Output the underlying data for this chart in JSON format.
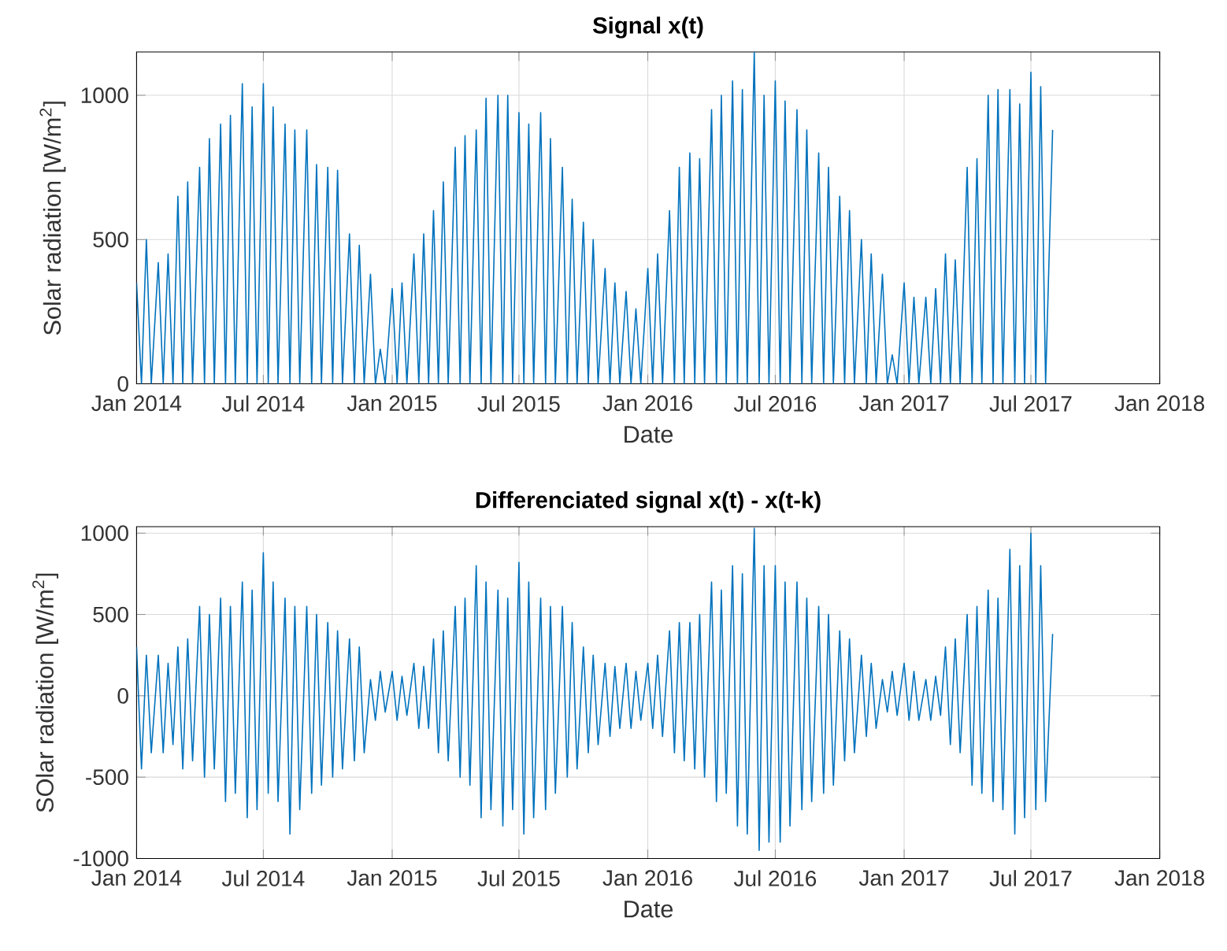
{
  "chart_data": [
    {
      "type": "line",
      "title": "Signal x(t)",
      "xlabel": "Date",
      "ylabel": "Solar radiation [W/m$^{2}$]",
      "grid": true,
      "xlim": [
        "2014-01-01",
        "2018-01-01"
      ],
      "ylim": [
        0,
        1150
      ],
      "xticks": [
        {
          "value": "2014-01-01",
          "label": "Jan 2014"
        },
        {
          "value": "2014-07-01",
          "label": "Jul 2014"
        },
        {
          "value": "2015-01-01",
          "label": "Jan 2015"
        },
        {
          "value": "2015-07-01",
          "label": "Jul 2015"
        },
        {
          "value": "2016-01-01",
          "label": "Jan 2016"
        },
        {
          "value": "2016-07-01",
          "label": "Jul 2016"
        },
        {
          "value": "2017-01-01",
          "label": "Jan 2017"
        },
        {
          "value": "2017-07-01",
          "label": "Jul 2017"
        },
        {
          "value": "2018-01-01",
          "label": "Jan 2018"
        }
      ],
      "yticks": [
        0,
        500,
        1000
      ],
      "x": [
        "2014-01-01",
        "2014-01-08",
        "2014-01-15",
        "2014-01-22",
        "2014-02-01",
        "2014-02-08",
        "2014-02-15",
        "2014-02-22",
        "2014-03-01",
        "2014-03-08",
        "2014-03-15",
        "2014-03-22",
        "2014-04-01",
        "2014-04-08",
        "2014-04-15",
        "2014-04-22",
        "2014-05-01",
        "2014-05-08",
        "2014-05-15",
        "2014-05-22",
        "2014-06-01",
        "2014-06-08",
        "2014-06-15",
        "2014-06-22",
        "2014-07-01",
        "2014-07-08",
        "2014-07-15",
        "2014-07-22",
        "2014-08-01",
        "2014-08-08",
        "2014-08-15",
        "2014-08-22",
        "2014-09-01",
        "2014-09-08",
        "2014-09-15",
        "2014-09-22",
        "2014-10-01",
        "2014-10-08",
        "2014-10-15",
        "2014-10-22",
        "2014-11-01",
        "2014-11-08",
        "2014-11-15",
        "2014-11-22",
        "2014-12-01",
        "2014-12-08",
        "2014-12-15",
        "2014-12-22",
        "2015-01-01",
        "2015-01-08",
        "2015-01-15",
        "2015-01-22",
        "2015-02-01",
        "2015-02-08",
        "2015-02-15",
        "2015-02-22",
        "2015-03-01",
        "2015-03-08",
        "2015-03-15",
        "2015-03-22",
        "2015-04-01",
        "2015-04-08",
        "2015-04-15",
        "2015-04-22",
        "2015-05-01",
        "2015-05-08",
        "2015-05-15",
        "2015-05-22",
        "2015-06-01",
        "2015-06-08",
        "2015-06-15",
        "2015-06-22",
        "2015-07-01",
        "2015-07-08",
        "2015-07-15",
        "2015-07-22",
        "2015-08-01",
        "2015-08-08",
        "2015-08-15",
        "2015-08-22",
        "2015-09-01",
        "2015-09-08",
        "2015-09-15",
        "2015-09-22",
        "2015-10-01",
        "2015-10-08",
        "2015-10-15",
        "2015-10-22",
        "2015-11-01",
        "2015-11-08",
        "2015-11-15",
        "2015-11-22",
        "2015-12-01",
        "2015-12-08",
        "2015-12-15",
        "2015-12-22",
        "2016-01-01",
        "2016-01-08",
        "2016-01-15",
        "2016-01-22",
        "2016-02-01",
        "2016-02-08",
        "2016-02-15",
        "2016-02-22",
        "2016-03-01",
        "2016-03-08",
        "2016-03-15",
        "2016-03-22",
        "2016-04-01",
        "2016-04-08",
        "2016-04-15",
        "2016-04-22",
        "2016-05-01",
        "2016-05-08",
        "2016-05-15",
        "2016-05-22",
        "2016-06-01",
        "2016-06-08",
        "2016-06-15",
        "2016-06-22",
        "2016-07-01",
        "2016-07-08",
        "2016-07-15",
        "2016-07-22",
        "2016-08-01",
        "2016-08-08",
        "2016-08-15",
        "2016-08-22",
        "2016-09-01",
        "2016-09-08",
        "2016-09-15",
        "2016-09-22",
        "2016-10-01",
        "2016-10-08",
        "2016-10-15",
        "2016-10-22",
        "2016-11-01",
        "2016-11-08",
        "2016-11-15",
        "2016-11-22",
        "2016-12-01",
        "2016-12-08",
        "2016-12-15",
        "2016-12-22",
        "2017-01-01",
        "2017-01-08",
        "2017-01-15",
        "2017-01-22",
        "2017-02-01",
        "2017-02-08",
        "2017-02-15",
        "2017-02-22",
        "2017-03-01",
        "2017-03-08",
        "2017-03-15",
        "2017-03-22",
        "2017-04-01",
        "2017-04-08",
        "2017-04-15",
        "2017-04-22",
        "2017-05-01",
        "2017-05-08",
        "2017-05-15",
        "2017-05-22",
        "2017-06-01",
        "2017-06-08",
        "2017-06-15",
        "2017-06-22",
        "2017-07-01",
        "2017-07-08",
        "2017-07-15",
        "2017-07-22",
        "2017-08-01"
      ],
      "series": [
        {
          "color": "#0072bd",
          "values": [
            350,
            0,
            500,
            0,
            420,
            0,
            450,
            0,
            650,
            0,
            700,
            0,
            750,
            0,
            850,
            0,
            900,
            0,
            930,
            0,
            1040,
            0,
            960,
            0,
            1040,
            0,
            960,
            0,
            900,
            0,
            880,
            0,
            880,
            0,
            760,
            0,
            750,
            0,
            740,
            0,
            520,
            0,
            480,
            0,
            380,
            0,
            120,
            0,
            330,
            0,
            350,
            0,
            450,
            0,
            520,
            0,
            600,
            0,
            700,
            0,
            820,
            0,
            860,
            0,
            880,
            0,
            990,
            0,
            1000,
            0,
            1000,
            0,
            940,
            0,
            900,
            0,
            940,
            0,
            850,
            0,
            750,
            0,
            640,
            0,
            560,
            0,
            500,
            0,
            400,
            0,
            350,
            0,
            320,
            0,
            260,
            0,
            400,
            0,
            450,
            0,
            600,
            0,
            750,
            0,
            800,
            0,
            780,
            0,
            950,
            0,
            1000,
            0,
            1050,
            0,
            1020,
            0,
            1150,
            0,
            1000,
            0,
            1050,
            0,
            980,
            0,
            950,
            0,
            880,
            0,
            800,
            0,
            750,
            0,
            650,
            0,
            600,
            0,
            500,
            0,
            450,
            0,
            380,
            0,
            100,
            0,
            350,
            0,
            300,
            0,
            300,
            0,
            330,
            0,
            450,
            0,
            430,
            0,
            750,
            0,
            780,
            0,
            1000,
            0,
            1020,
            0,
            1020,
            0,
            970,
            0,
            1080,
            0,
            1030,
            0,
            880
          ]
        }
      ]
    },
    {
      "type": "line",
      "title": "Differenciated signal x(t) - x(t-k)",
      "xlabel": "Date",
      "ylabel": "SOlar radiation [W/m$^{2}$]",
      "grid": true,
      "xlim": [
        "2014-01-01",
        "2018-01-01"
      ],
      "ylim": [
        -1000,
        1040
      ],
      "xticks": [
        {
          "value": "2014-01-01",
          "label": "Jan 2014"
        },
        {
          "value": "2014-07-01",
          "label": "Jul 2014"
        },
        {
          "value": "2015-01-01",
          "label": "Jan 2015"
        },
        {
          "value": "2015-07-01",
          "label": "Jul 2015"
        },
        {
          "value": "2016-01-01",
          "label": "Jan 2016"
        },
        {
          "value": "2016-07-01",
          "label": "Jul 2016"
        },
        {
          "value": "2017-01-01",
          "label": "Jan 2017"
        },
        {
          "value": "2017-07-01",
          "label": "Jul 2017"
        },
        {
          "value": "2018-01-01",
          "label": "Jan 2018"
        }
      ],
      "yticks": [
        -1000,
        -500,
        0,
        500,
        1000
      ],
      "x": [
        "2014-01-01",
        "2014-01-08",
        "2014-01-15",
        "2014-01-22",
        "2014-02-01",
        "2014-02-08",
        "2014-02-15",
        "2014-02-22",
        "2014-03-01",
        "2014-03-08",
        "2014-03-15",
        "2014-03-22",
        "2014-04-01",
        "2014-04-08",
        "2014-04-15",
        "2014-04-22",
        "2014-05-01",
        "2014-05-08",
        "2014-05-15",
        "2014-05-22",
        "2014-06-01",
        "2014-06-08",
        "2014-06-15",
        "2014-06-22",
        "2014-07-01",
        "2014-07-08",
        "2014-07-15",
        "2014-07-22",
        "2014-08-01",
        "2014-08-08",
        "2014-08-15",
        "2014-08-22",
        "2014-09-01",
        "2014-09-08",
        "2014-09-15",
        "2014-09-22",
        "2014-10-01",
        "2014-10-08",
        "2014-10-15",
        "2014-10-22",
        "2014-11-01",
        "2014-11-08",
        "2014-11-15",
        "2014-11-22",
        "2014-12-01",
        "2014-12-08",
        "2014-12-15",
        "2014-12-22",
        "2015-01-01",
        "2015-01-08",
        "2015-01-15",
        "2015-01-22",
        "2015-02-01",
        "2015-02-08",
        "2015-02-15",
        "2015-02-22",
        "2015-03-01",
        "2015-03-08",
        "2015-03-15",
        "2015-03-22",
        "2015-04-01",
        "2015-04-08",
        "2015-04-15",
        "2015-04-22",
        "2015-05-01",
        "2015-05-08",
        "2015-05-15",
        "2015-05-22",
        "2015-06-01",
        "2015-06-08",
        "2015-06-15",
        "2015-06-22",
        "2015-07-01",
        "2015-07-08",
        "2015-07-15",
        "2015-07-22",
        "2015-08-01",
        "2015-08-08",
        "2015-08-15",
        "2015-08-22",
        "2015-09-01",
        "2015-09-08",
        "2015-09-15",
        "2015-09-22",
        "2015-10-01",
        "2015-10-08",
        "2015-10-15",
        "2015-10-22",
        "2015-11-01",
        "2015-11-08",
        "2015-11-15",
        "2015-11-22",
        "2015-12-01",
        "2015-12-08",
        "2015-12-15",
        "2015-12-22",
        "2016-01-01",
        "2016-01-08",
        "2016-01-15",
        "2016-01-22",
        "2016-02-01",
        "2016-02-08",
        "2016-02-15",
        "2016-02-22",
        "2016-03-01",
        "2016-03-08",
        "2016-03-15",
        "2016-03-22",
        "2016-04-01",
        "2016-04-08",
        "2016-04-15",
        "2016-04-22",
        "2016-05-01",
        "2016-05-08",
        "2016-05-15",
        "2016-05-22",
        "2016-06-01",
        "2016-06-08",
        "2016-06-15",
        "2016-06-22",
        "2016-07-01",
        "2016-07-08",
        "2016-07-15",
        "2016-07-22",
        "2016-08-01",
        "2016-08-08",
        "2016-08-15",
        "2016-08-22",
        "2016-09-01",
        "2016-09-08",
        "2016-09-15",
        "2016-09-22",
        "2016-10-01",
        "2016-10-08",
        "2016-10-15",
        "2016-10-22",
        "2016-11-01",
        "2016-11-08",
        "2016-11-15",
        "2016-11-22",
        "2016-12-01",
        "2016-12-08",
        "2016-12-15",
        "2016-12-22",
        "2017-01-01",
        "2017-01-08",
        "2017-01-15",
        "2017-01-22",
        "2017-02-01",
        "2017-02-08",
        "2017-02-15",
        "2017-02-22",
        "2017-03-01",
        "2017-03-08",
        "2017-03-15",
        "2017-03-22",
        "2017-04-01",
        "2017-04-08",
        "2017-04-15",
        "2017-04-22",
        "2017-05-01",
        "2017-05-08",
        "2017-05-15",
        "2017-05-22",
        "2017-06-01",
        "2017-06-08",
        "2017-06-15",
        "2017-06-22",
        "2017-07-01",
        "2017-07-08",
        "2017-07-15",
        "2017-07-22",
        "2017-08-01"
      ],
      "series": [
        {
          "color": "#0072bd",
          "values": [
            300,
            -450,
            250,
            -350,
            250,
            -350,
            200,
            -300,
            300,
            -450,
            350,
            -400,
            550,
            -500,
            500,
            -450,
            600,
            -650,
            550,
            -600,
            700,
            -750,
            650,
            -700,
            880,
            -600,
            700,
            -650,
            600,
            -850,
            550,
            -700,
            550,
            -600,
            500,
            -550,
            450,
            -500,
            400,
            -450,
            350,
            -400,
            300,
            -350,
            100,
            -150,
            150,
            -100,
            150,
            -150,
            120,
            -120,
            200,
            -200,
            180,
            -200,
            350,
            -350,
            400,
            -400,
            550,
            -500,
            600,
            -550,
            800,
            -750,
            700,
            -700,
            650,
            -800,
            600,
            -700,
            820,
            -850,
            700,
            -750,
            600,
            -700,
            550,
            -600,
            550,
            -500,
            450,
            -450,
            300,
            -350,
            250,
            -300,
            200,
            -250,
            180,
            -200,
            200,
            -200,
            150,
            -150,
            200,
            -200,
            250,
            -250,
            400,
            -350,
            450,
            -400,
            450,
            -450,
            500,
            -500,
            700,
            -650,
            650,
            -600,
            800,
            -800,
            750,
            -850,
            1030,
            -950,
            800,
            -900,
            800,
            -900,
            700,
            -800,
            700,
            -700,
            600,
            -650,
            550,
            -600,
            500,
            -550,
            400,
            -400,
            350,
            -350,
            250,
            -250,
            200,
            -200,
            100,
            -100,
            150,
            -120,
            200,
            -150,
            150,
            -150,
            100,
            -150,
            120,
            -120,
            300,
            -300,
            350,
            -350,
            500,
            -550,
            550,
            -600,
            650,
            -650,
            600,
            -700,
            900,
            -850,
            800,
            -750,
            1000,
            -700,
            800,
            -650,
            380
          ]
        }
      ]
    }
  ]
}
